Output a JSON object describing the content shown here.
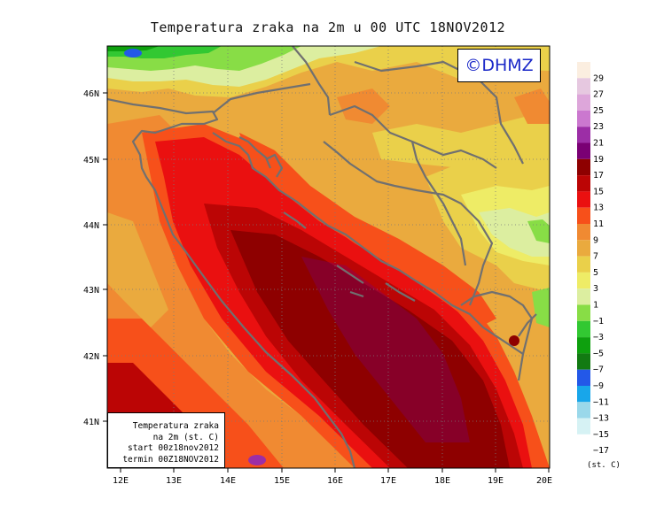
{
  "title": "Temperatura zraka na 2m u 00 UTC 18NOV2012",
  "copyright": "©DHMZ",
  "info_box": {
    "line1": "Temperatura zraka",
    "line2": "na 2m (st. C)",
    "line3": "start 00z18nov2012",
    "line4": "termin 00Z18NOV2012"
  },
  "lat_labels": [
    "46N",
    "45N",
    "44N",
    "43N",
    "42N",
    "41N"
  ],
  "lon_labels": [
    "12E",
    "13E",
    "14E",
    "15E",
    "16E",
    "17E",
    "18E",
    "19E",
    "20E"
  ],
  "legend": {
    "unit": "(st. C)",
    "labels": [
      "29",
      "27",
      "25",
      "23",
      "21",
      "19",
      "17",
      "15",
      "13",
      "11",
      "9",
      "7",
      "5",
      "3",
      "1",
      "−1",
      "−3",
      "−5",
      "−7",
      "−9",
      "−11",
      "−13",
      "−15",
      "−17"
    ],
    "colors": [
      "#fbeee0",
      "#e6c8e0",
      "#dda6da",
      "#cb78cf",
      "#9c2ea6",
      "#7a0074",
      "#8e0000",
      "#bb0505",
      "#ea1010",
      "#f7501a",
      "#f08a32",
      "#eaaa3e",
      "#ead04a",
      "#eeec66",
      "#dceea0",
      "#88dd46",
      "#32c832",
      "#0ea00e",
      "#127a12",
      "#2358e8",
      "#18a6ea",
      "#9ad8ea",
      "#d6f2f4",
      "#ffffff"
    ]
  },
  "colors": {
    "coastline": "#707070",
    "grid": "#7a7a7a"
  }
}
